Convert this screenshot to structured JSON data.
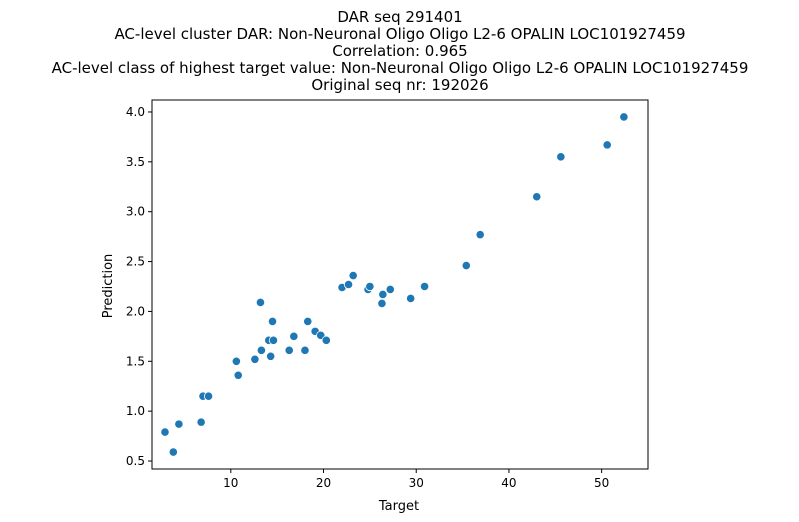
{
  "chart_data": {
    "type": "scatter",
    "title_lines": [
      "DAR seq 291401",
      "AC-level cluster DAR: Non-Neuronal Oligo Oligo L2-6 OPALIN LOC101927459",
      "Correlation: 0.965",
      "AC-level class of highest target value: Non-Neuronal Oligo Oligo L2-6 OPALIN LOC101927459",
      "Original seq nr: 192026"
    ],
    "xlabel": "Target",
    "ylabel": "Prediction",
    "xlim": [
      1.5,
      55.0
    ],
    "ylim": [
      0.42,
      4.12
    ],
    "xticks": [
      10,
      20,
      30,
      40,
      50
    ],
    "yticks": [
      0.5,
      1.0,
      1.5,
      2.0,
      2.5,
      3.0,
      3.5,
      4.0
    ],
    "xtick_labels": [
      "10",
      "20",
      "30",
      "40",
      "50"
    ],
    "ytick_labels": [
      "0.5",
      "1.0",
      "1.5",
      "2.0",
      "2.5",
      "3.0",
      "3.5",
      "4.0"
    ],
    "marker_color": "#1f77b4",
    "grid": false,
    "points": [
      {
        "x": 2.9,
        "y": 0.79
      },
      {
        "x": 3.8,
        "y": 0.59
      },
      {
        "x": 4.4,
        "y": 0.87
      },
      {
        "x": 6.8,
        "y": 0.89
      },
      {
        "x": 7.0,
        "y": 1.15
      },
      {
        "x": 7.6,
        "y": 1.15
      },
      {
        "x": 10.6,
        "y": 1.5
      },
      {
        "x": 10.8,
        "y": 1.36
      },
      {
        "x": 12.6,
        "y": 1.52
      },
      {
        "x": 13.2,
        "y": 2.09
      },
      {
        "x": 13.3,
        "y": 1.61
      },
      {
        "x": 14.1,
        "y": 1.71
      },
      {
        "x": 14.3,
        "y": 1.55
      },
      {
        "x": 14.5,
        "y": 1.9
      },
      {
        "x": 14.6,
        "y": 1.71
      },
      {
        "x": 16.3,
        "y": 1.61
      },
      {
        "x": 16.8,
        "y": 1.75
      },
      {
        "x": 18.0,
        "y": 1.61
      },
      {
        "x": 18.3,
        "y": 1.9
      },
      {
        "x": 19.1,
        "y": 1.8
      },
      {
        "x": 19.7,
        "y": 1.76
      },
      {
        "x": 20.3,
        "y": 1.71
      },
      {
        "x": 22.0,
        "y": 2.24
      },
      {
        "x": 22.7,
        "y": 2.27
      },
      {
        "x": 23.2,
        "y": 2.36
      },
      {
        "x": 24.8,
        "y": 2.22
      },
      {
        "x": 25.0,
        "y": 2.25
      },
      {
        "x": 26.3,
        "y": 2.08
      },
      {
        "x": 26.4,
        "y": 2.17
      },
      {
        "x": 27.2,
        "y": 2.22
      },
      {
        "x": 29.4,
        "y": 2.13
      },
      {
        "x": 30.9,
        "y": 2.25
      },
      {
        "x": 35.4,
        "y": 2.46
      },
      {
        "x": 36.9,
        "y": 2.77
      },
      {
        "x": 43.0,
        "y": 3.15
      },
      {
        "x": 45.6,
        "y": 3.55
      },
      {
        "x": 50.6,
        "y": 3.67
      },
      {
        "x": 52.4,
        "y": 3.95
      }
    ]
  }
}
